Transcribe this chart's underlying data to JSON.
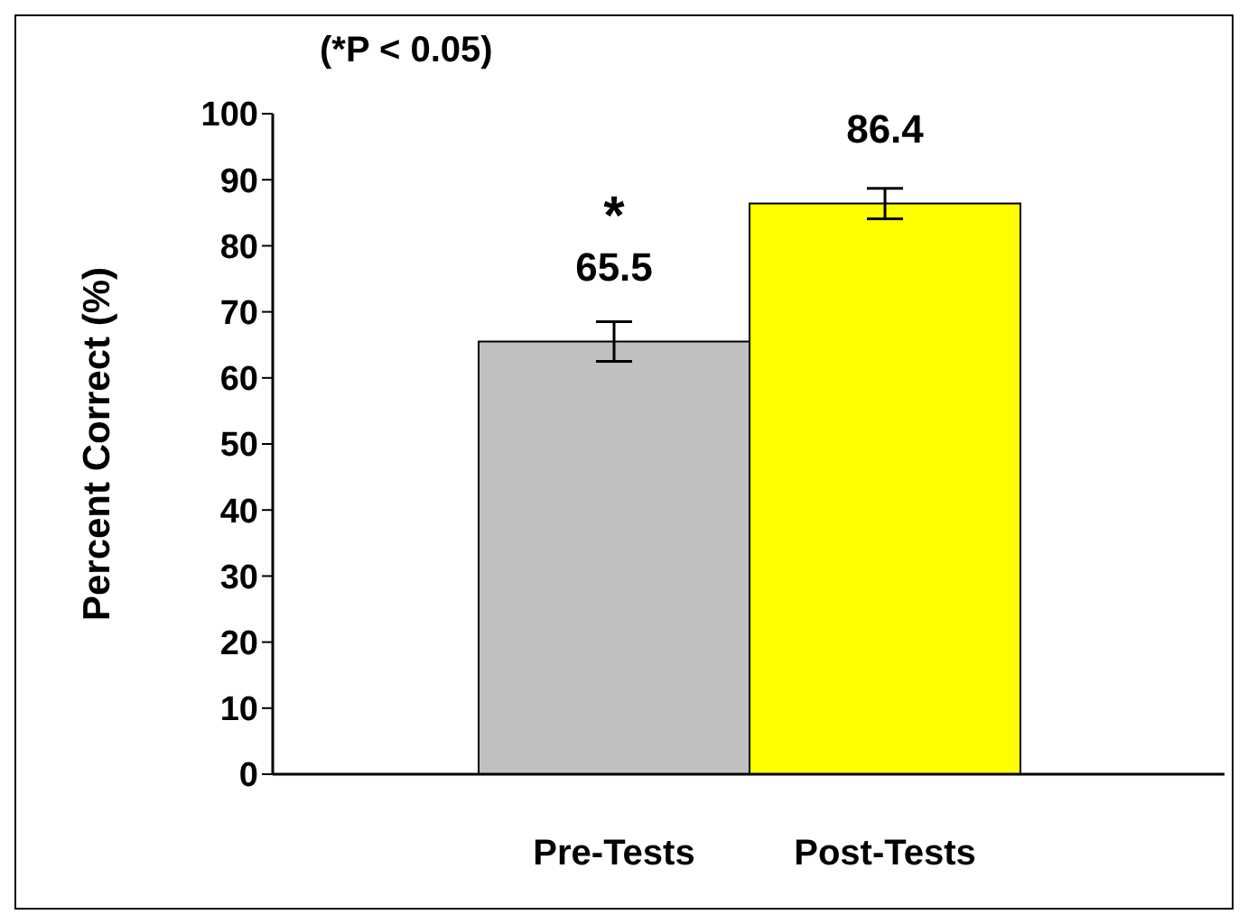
{
  "chart_data": {
    "type": "bar",
    "ylabel": "Percent Correct (%)",
    "categories": [
      "Pre-Tests",
      "Post-Tests"
    ],
    "values": [
      65.5,
      86.4
    ],
    "colors": [
      "#c0c0c0",
      "#ffff00"
    ],
    "errors": [
      3,
      2.3
    ],
    "data_labels": true,
    "ylim": [
      0,
      100
    ],
    "yticks": [
      0,
      10,
      20,
      30,
      40,
      50,
      60,
      70,
      80,
      90,
      100
    ],
    "grid": false,
    "legend": false,
    "annotations": [
      "(*P < 0.05)",
      {
        "text": "*",
        "x": "Pre-Tests",
        "y": 65.5
      }
    ]
  }
}
